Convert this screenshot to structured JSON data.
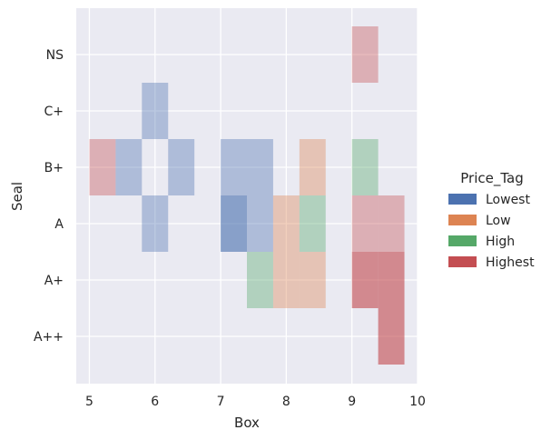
{
  "chart_data": {
    "type": "heatmap",
    "title": "",
    "xlabel": "Box",
    "ylabel": "Seal",
    "xlim": [
      4.8,
      10.0
    ],
    "x_ticks": [
      "5",
      "6",
      "7",
      "8",
      "9",
      "10"
    ],
    "y_categories": [
      "NS",
      "C+",
      "B+",
      "A",
      "A+",
      "A++"
    ],
    "bin_edges": [
      5.0,
      5.4,
      5.8,
      6.2,
      6.6,
      7.0,
      7.4,
      7.8,
      8.2,
      8.6,
      9.0,
      9.4,
      9.8
    ],
    "legend_title": "Price_Tag",
    "grid": true,
    "legend_position": "right",
    "series": [
      {
        "name": "Lowest",
        "color": "#4c72b0",
        "cells": [
          {
            "x": [
              5.4,
              5.8
            ],
            "y": "B+",
            "count": 1
          },
          {
            "x": [
              5.8,
              6.2
            ],
            "y": "C+",
            "count": 1
          },
          {
            "x": [
              5.8,
              6.2
            ],
            "y": "A",
            "count": 1
          },
          {
            "x": [
              6.2,
              6.6
            ],
            "y": "B+",
            "count": 1
          },
          {
            "x": [
              7.0,
              7.4
            ],
            "y": "B+",
            "count": 1
          },
          {
            "x": [
              7.4,
              7.8
            ],
            "y": "B+",
            "count": 1
          },
          {
            "x": [
              7.0,
              7.4
            ],
            "y": "A",
            "count": 2
          },
          {
            "x": [
              7.4,
              7.8
            ],
            "y": "A",
            "count": 1
          }
        ]
      },
      {
        "name": "Low",
        "color": "#dd8452",
        "cells": [
          {
            "x": [
              8.2,
              8.6
            ],
            "y": "B+",
            "count": 1
          },
          {
            "x": [
              7.8,
              8.2
            ],
            "y": "A",
            "count": 1
          },
          {
            "x": [
              7.8,
              8.2
            ],
            "y": "A+",
            "count": 1
          },
          {
            "x": [
              8.2,
              8.6
            ],
            "y": "A+",
            "count": 1
          }
        ]
      },
      {
        "name": "High",
        "color": "#55a868",
        "cells": [
          {
            "x": [
              9.0,
              9.4
            ],
            "y": "B+",
            "count": 1
          },
          {
            "x": [
              8.2,
              8.6
            ],
            "y": "A",
            "count": 1
          },
          {
            "x": [
              7.4,
              7.8
            ],
            "y": "A+",
            "count": 1
          }
        ]
      },
      {
        "name": "Highest",
        "color": "#c44e52",
        "cells": [
          {
            "x": [
              9.0,
              9.4
            ],
            "y": "NS",
            "count": 1
          },
          {
            "x": [
              5.0,
              5.4
            ],
            "y": "B+",
            "count": 1
          },
          {
            "x": [
              9.0,
              9.4
            ],
            "y": "A",
            "count": 1
          },
          {
            "x": [
              9.4,
              9.8
            ],
            "y": "A",
            "count": 1
          },
          {
            "x": [
              9.0,
              9.4
            ],
            "y": "A+",
            "count": 2
          },
          {
            "x": [
              9.4,
              9.8
            ],
            "y": "A+",
            "count": 2
          },
          {
            "x": [
              9.4,
              9.8
            ],
            "y": "A++",
            "count": 2
          }
        ]
      }
    ]
  }
}
